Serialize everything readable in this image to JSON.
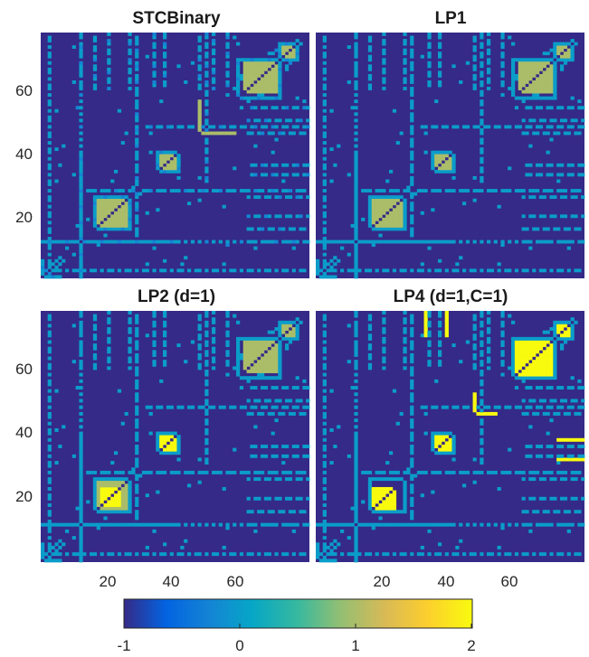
{
  "chart_data": {
    "type": "heatmap",
    "grid_size": 77,
    "colormap": "parula",
    "colorbar": {
      "location": "bottom",
      "limits": [
        -1,
        2
      ],
      "ticks": [
        "-1",
        "0",
        "1",
        "2"
      ]
    },
    "x_ticks": [
      "20",
      "40",
      "60"
    ],
    "y_ticks": [
      "20",
      "40",
      "60"
    ],
    "panels": [
      {
        "title": "STCBinary",
        "background": -1,
        "blocks": [
          {
            "range": [
              17,
              25
            ],
            "value": 1
          },
          {
            "range": [
              35,
              39
            ],
            "value": 1
          },
          {
            "range": [
              59,
              68
            ],
            "value": 1
          },
          {
            "range": [
              70,
              73
            ],
            "value": 1
          }
        ],
        "diagonal": -1,
        "structure_value": 0,
        "structure_mix": -0.25,
        "highlight_rows": [
          {
            "index": 46,
            "from": 47,
            "to": 56,
            "value": 1
          }
        ]
      },
      {
        "title": "LP1",
        "background": -1,
        "blocks": [
          {
            "range": [
              17,
              25
            ],
            "value": 1
          },
          {
            "range": [
              35,
              39
            ],
            "value": 1
          },
          {
            "range": [
              59,
              68
            ],
            "value": 1
          },
          {
            "range": [
              70,
              73
            ],
            "value": 1
          }
        ],
        "diagonal": -1,
        "structure_value": 0,
        "structure_mix": 0,
        "highlight_rows": []
      },
      {
        "title": "LP2 (d=1)",
        "background": -1,
        "blocks": [
          {
            "range": [
              17,
              25
            ],
            "value": 1
          },
          {
            "range": [
              18,
              23
            ],
            "value": 2
          },
          {
            "range": [
              35,
              39
            ],
            "value": 2
          },
          {
            "range": [
              59,
              68
            ],
            "value": 1
          },
          {
            "range": [
              70,
              73
            ],
            "value": 1
          }
        ],
        "diagonal": -1,
        "structure_value": 0,
        "structure_mix": 0,
        "highlight_rows": []
      },
      {
        "title": "LP4 (d=1,C=1)",
        "background": -1,
        "blocks": [
          {
            "range": [
              17,
              23
            ],
            "value": 2
          },
          {
            "range": [
              35,
              39
            ],
            "value": 2
          },
          {
            "range": [
              58,
              68
            ],
            "value": 2
          },
          {
            "range": [
              70,
              73
            ],
            "value": 2
          }
        ],
        "diagonal": -1,
        "structure_value": 0,
        "structure_mix": 0,
        "highlight_rows": [
          {
            "index": 32,
            "from": 70,
            "to": 77,
            "value": 2
          },
          {
            "index": 46,
            "from": 47,
            "to": 52,
            "value": 2
          },
          {
            "index": 38,
            "from": 70,
            "to": 77,
            "value": 2
          }
        ]
      }
    ]
  }
}
